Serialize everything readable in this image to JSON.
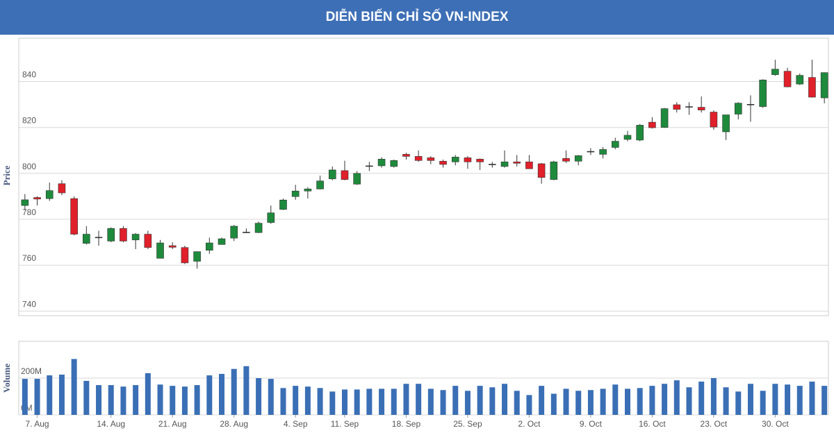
{
  "chart_data": {
    "type": "candlestick",
    "title": "DIỄN BIẾN CHỈ SỐ VN-INDEX",
    "ylabel": "Price",
    "up_color": "#1e8a3c",
    "down_color": "#e0202a",
    "grid": true,
    "categories": [
      null,
      "7. Aug",
      null,
      null,
      null,
      null,
      null,
      "14. Aug",
      null,
      null,
      null,
      null,
      "21. Aug",
      null,
      null,
      null,
      null,
      "28. Aug",
      null,
      null,
      null,
      null,
      "4. Sep",
      null,
      null,
      null,
      "11. Sep",
      null,
      null,
      null,
      null,
      "18. Sep",
      null,
      null,
      null,
      null,
      "25. Sep",
      null,
      null,
      null,
      null,
      "2. Oct",
      null,
      null,
      null,
      null,
      "9. Oct",
      null,
      null,
      null,
      null,
      "16. Oct",
      null,
      null,
      null,
      null,
      "23. Oct",
      null,
      null,
      null,
      null,
      "30. Oct",
      null,
      null,
      null,
      null
    ],
    "open": [
      786,
      789.5,
      789,
      795.5,
      789,
      769.5,
      772,
      770.5,
      776,
      771,
      773.5,
      763,
      768.5,
      767.7,
      761.7,
      766.5,
      769,
      771.8,
      774.3,
      774.2,
      778.6,
      784.3,
      789.9,
      792.3,
      793.2,
      797.6,
      801.2,
      795.3,
      803.2,
      803.3,
      803,
      808.3,
      807.4,
      806.8,
      805.3,
      805,
      806.8,
      806.2,
      803.9,
      803,
      805,
      805,
      804.2,
      797.3,
      806.5,
      805.3,
      809.5,
      808.3,
      811.3,
      814.8,
      814.5,
      822.3,
      820,
      829.9,
      829,
      828.8,
      826.7,
      818.1,
      825.8,
      830,
      829.1,
      843,
      844.5,
      838.9,
      841.8,
      832.9
    ],
    "high": [
      791,
      790,
      796,
      797,
      790,
      777,
      775,
      776.5,
      777,
      774,
      775,
      771,
      770,
      768.5,
      766,
      772,
      772,
      777.5,
      776,
      779,
      786,
      789,
      795,
      794,
      799,
      803,
      805.5,
      801,
      805,
      807,
      806,
      809,
      810,
      807.5,
      806,
      808,
      807.5,
      806.5,
      805,
      810,
      808,
      808,
      804.5,
      805.5,
      810,
      808,
      811,
      811.5,
      815.5,
      818.5,
      821.5,
      824.5,
      828.5,
      831,
      831,
      833.5,
      827.5,
      825.5,
      831,
      834,
      841,
      849.5,
      846,
      843.5,
      849.5,
      844
    ],
    "low": [
      784,
      786,
      788,
      790.5,
      773,
      769,
      768.5,
      770,
      770,
      767,
      767,
      763,
      767,
      760.5,
      758.5,
      765,
      769,
      770.5,
      774,
      774,
      778,
      784,
      788.5,
      789,
      793,
      797,
      797,
      795,
      801,
      802.5,
      802.5,
      806,
      805,
      804,
      802.5,
      803.5,
      802,
      801.5,
      802.5,
      802.5,
      803,
      802,
      795.5,
      797,
      804.5,
      803.5,
      808,
      806.5,
      810.5,
      814,
      814,
      819.5,
      819.8,
      826.5,
      825.5,
      826.5,
      819,
      814.5,
      823.5,
      822.5,
      828.5,
      842.5,
      837.5,
      838.5,
      833,
      830.5
    ],
    "close": [
      788.5,
      788.8,
      792.5,
      791.5,
      773.5,
      773.5,
      772.2,
      776,
      770.5,
      773.5,
      767.7,
      769.7,
      767.8,
      761,
      765.9,
      769.7,
      771.5,
      777,
      774.4,
      778.3,
      782.8,
      788.4,
      792.3,
      793.2,
      796.7,
      801.5,
      797.3,
      800,
      803.3,
      806.2,
      805.6,
      807.4,
      805.6,
      805.6,
      803.9,
      807.1,
      805,
      805,
      804,
      805,
      804.4,
      802,
      798.2,
      805,
      805.3,
      807.7,
      809.6,
      810.4,
      814,
      816.6,
      821,
      819.9,
      828.2,
      827.9,
      829.1,
      827.6,
      820.2,
      825.5,
      830.6,
      830.1,
      840.7,
      845.4,
      837.7,
      842.7,
      833.2,
      843.9
    ],
    "ylim": [
      738,
      858
    ],
    "yticks": [
      740,
      760,
      780,
      800,
      820,
      840
    ],
    "volume": {
      "ylabel": "Volume",
      "color": "#3a6fb5",
      "values": [
        196,
        196,
        215,
        219,
        304,
        185,
        162,
        162,
        154,
        162,
        227,
        165,
        158,
        154,
        162,
        215,
        223,
        250,
        265,
        200,
        196,
        146,
        158,
        154,
        146,
        127,
        138,
        138,
        142,
        142,
        142,
        169,
        169,
        142,
        135,
        158,
        131,
        158,
        150,
        169,
        131,
        108,
        158,
        115,
        142,
        131,
        135,
        142,
        165,
        142,
        146,
        158,
        169,
        188,
        150,
        181,
        200,
        150,
        127,
        169,
        131,
        169,
        165,
        158,
        181,
        158
      ],
      "ylim": [
        0,
        400
      ],
      "yticks": [
        {
          "value": 0,
          "label": "0M"
        },
        {
          "value": 200,
          "label": "200M"
        }
      ]
    }
  }
}
